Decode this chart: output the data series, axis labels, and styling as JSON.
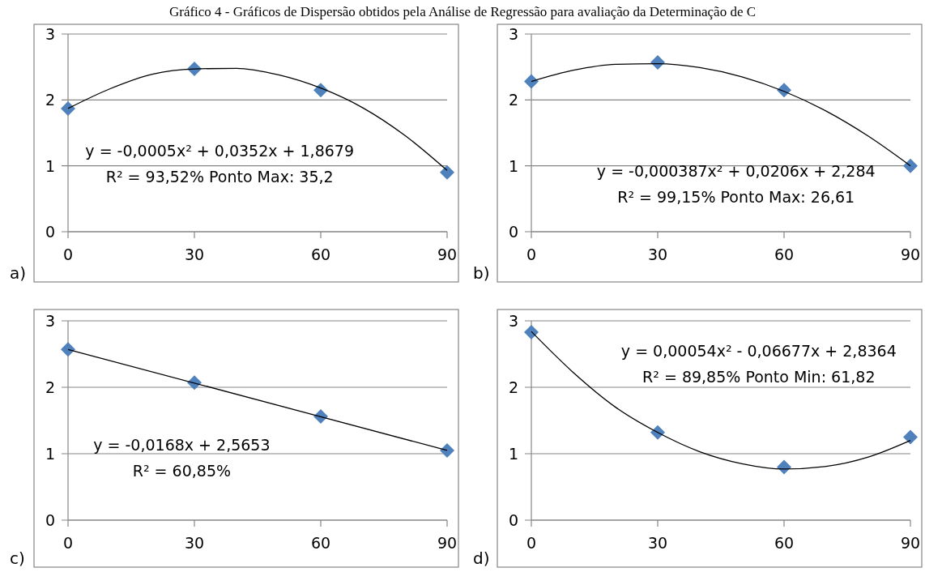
{
  "chart_data": [
    {
      "type": "scatter",
      "title": "Gráfico 4 - Gráficos de Dispersão obtidos pela Análise de Regressão para avaliação da Determinação de C",
      "x": [
        0,
        30,
        60,
        90
      ],
      "xlim": [
        0,
        90
      ],
      "xticks": [
        0,
        30,
        60,
        90
      ],
      "ylim": [
        0,
        3
      ],
      "yticks": [
        0,
        1,
        2,
        3
      ],
      "grid": "y",
      "series": [
        {
          "color": "#4f81bd",
          "marker": "diamond",
          "values": [
            1.87,
            2.47,
            2.15,
            0.9
          ]
        },
        {
          "type": "line",
          "color": "#000000",
          "marker": "none",
          "x": [
            0,
            10,
            20,
            30,
            40,
            50,
            60,
            70,
            80,
            90
          ],
          "values": [
            1.87,
            2.17,
            2.39,
            2.47,
            2.48,
            2.38,
            2.18,
            1.88,
            1.46,
            0.93
          ]
        }
      ],
      "annotations": [
        "a)",
        "y = -0,0005x² + 0,0352x + 1,8679",
        "R² = 93,52% Ponto Max: 35,2"
      ]
    },
    {
      "type": "scatter",
      "x": [
        0,
        30,
        60,
        90
      ],
      "xlim": [
        0,
        90
      ],
      "xticks": [
        0,
        30,
        60,
        90
      ],
      "ylim": [
        0,
        3
      ],
      "yticks": [
        0,
        1,
        2,
        3
      ],
      "grid": "y",
      "series": [
        {
          "color": "#4f81bd",
          "marker": "diamond",
          "values": [
            2.28,
            2.57,
            2.15,
            1.0
          ]
        },
        {
          "type": "line",
          "color": "#000000",
          "marker": "none",
          "x": [
            0,
            10,
            20,
            30,
            40,
            50,
            60,
            70,
            80,
            90
          ],
          "values": [
            2.28,
            2.45,
            2.54,
            2.55,
            2.49,
            2.35,
            2.13,
            1.83,
            1.45,
            1.0
          ]
        }
      ],
      "annotations": [
        "b)",
        "y = -0,000387x² + 0,0206x + 2,284",
        "R² = 99,15% Ponto Max: 26,61"
      ]
    },
    {
      "type": "scatter",
      "x": [
        0,
        30,
        60,
        90
      ],
      "xlim": [
        0,
        90
      ],
      "xticks": [
        0,
        30,
        60,
        90
      ],
      "ylim": [
        0,
        3
      ],
      "yticks": [
        0,
        1,
        2,
        3
      ],
      "grid": "y",
      "series": [
        {
          "color": "#4f81bd",
          "marker": "diamond",
          "values": [
            2.57,
            2.07,
            1.56,
            1.05
          ]
        },
        {
          "type": "line",
          "color": "#000000",
          "marker": "none",
          "x": [
            0,
            90
          ],
          "values": [
            2.57,
            1.05
          ]
        }
      ],
      "annotations": [
        "c)",
        "y = -0,0168x + 2,5653",
        "R² = 60,85%"
      ]
    },
    {
      "type": "scatter",
      "x": [
        0,
        30,
        60,
        90
      ],
      "xlim": [
        0,
        90
      ],
      "xticks": [
        0,
        30,
        60,
        90
      ],
      "ylim": [
        0,
        3
      ],
      "yticks": [
        0,
        1,
        2,
        3
      ],
      "grid": "y",
      "series": [
        {
          "color": "#4f81bd",
          "marker": "diamond",
          "values": [
            2.83,
            1.32,
            0.8,
            1.25
          ]
        },
        {
          "type": "line",
          "color": "#000000",
          "marker": "none",
          "x": [
            0,
            10,
            20,
            30,
            40,
            50,
            60,
            70,
            80,
            90
          ],
          "values": [
            2.84,
            2.22,
            1.7,
            1.32,
            1.03,
            0.85,
            0.77,
            0.81,
            0.95,
            1.2
          ]
        }
      ],
      "annotations": [
        "d)",
        "y = 0,00054x² - 0,06677x + 2,8364",
        "R² = 89,85% Ponto Min: 61,82"
      ]
    }
  ]
}
